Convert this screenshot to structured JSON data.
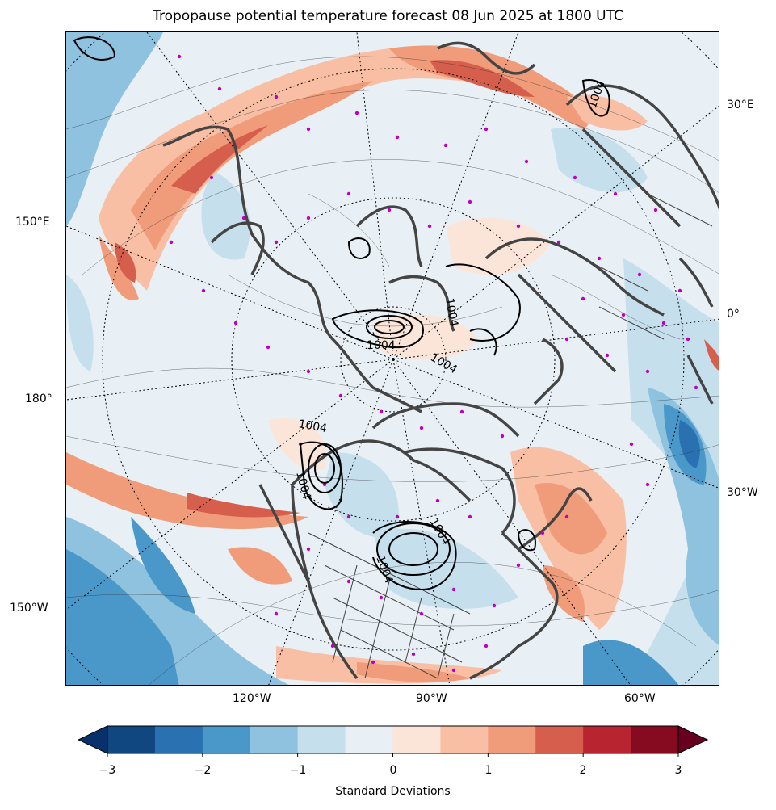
{
  "title": "Tropopause potential temperature forecast 08 Jun 2025 at 1800 UTC",
  "map": {
    "projection": "north-polar-stereographic",
    "lon_labels": {
      "e30": "30°E",
      "e150": "150°E",
      "zero": "0°",
      "lon180": "180°",
      "w30": "30°W",
      "w150": "150°W",
      "w120": "120°W",
      "w90": "90°W",
      "w60": "60°W"
    },
    "contour_labels": [
      "1004",
      "1004",
      "1004",
      "1004",
      "1004",
      "1004",
      "1004",
      "1004"
    ]
  },
  "colorbar": {
    "label": "Standard Deviations",
    "ticks": [
      "−3",
      "−2",
      "−1",
      "0",
      "1",
      "2",
      "3"
    ],
    "colors": [
      "#08306b",
      "#114781",
      "#2a71b2",
      "#4a98c9",
      "#8fc2de",
      "#c5dfec",
      "#e8f0f5",
      "#fbe5d9",
      "#f8bfa4",
      "#f09c7b",
      "#d55f4c",
      "#b82530",
      "#860b21",
      "#67001f"
    ],
    "range": [
      -3,
      3
    ],
    "extend": "both"
  }
}
